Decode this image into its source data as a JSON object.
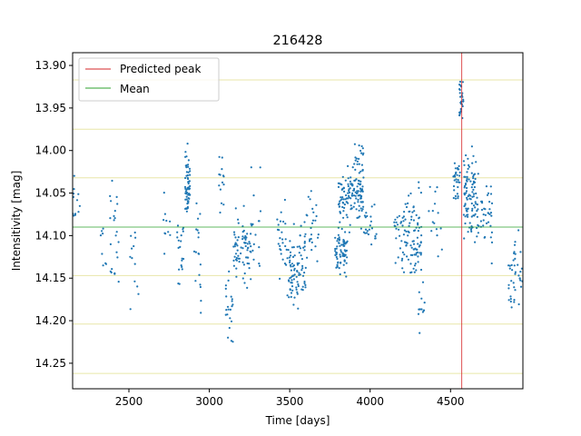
{
  "chart_data": {
    "type": "scatter",
    "title": "216428",
    "xlabel": "Time [days]",
    "ylabel": "Intensitivity [mag]",
    "xlim": [
      2150,
      4950
    ],
    "ylim": [
      14.28,
      13.885
    ],
    "y_inverted": true,
    "x_ticks": [
      2500,
      3000,
      3500,
      4000,
      4500
    ],
    "y_ticks": [
      13.9,
      13.95,
      14.0,
      14.05,
      14.1,
      14.15,
      14.2,
      14.25
    ],
    "x_tick_labels": [
      "2500",
      "3000",
      "3500",
      "4000",
      "4500"
    ],
    "y_tick_labels": [
      "13.90",
      "13.95",
      "14.00",
      "14.05",
      "14.10",
      "14.15",
      "14.20",
      "14.25"
    ],
    "grid": false,
    "legend": {
      "placement": "top-left",
      "entries": [
        {
          "label": "Predicted peak",
          "color": "#d62728"
        },
        {
          "label": "Mean",
          "color": "#2ca02c"
        }
      ]
    },
    "predicted_peak_x": 4570,
    "mean_y": 14.09,
    "sigma_lines_y": [
      13.917,
      13.975,
      14.032,
      14.147,
      14.204,
      14.262
    ],
    "colors": {
      "points": "#1f77b4",
      "predicted_peak": "#d62728",
      "mean": "#2ca02c",
      "sigma": "#e8e6a8"
    },
    "clusters": [
      {
        "x": [
          2150,
          2200
        ],
        "y": [
          14.02,
          14.11
        ],
        "n": 12
      },
      {
        "x": [
          2320,
          2360
        ],
        "y": [
          14.04,
          14.17
        ],
        "n": 8
      },
      {
        "x": [
          2380,
          2440
        ],
        "y": [
          14.02,
          14.2
        ],
        "n": 22
      },
      {
        "x": [
          2500,
          2560
        ],
        "y": [
          14.06,
          14.2
        ],
        "n": 12
      },
      {
        "x": [
          2700,
          2760
        ],
        "y": [
          14.02,
          14.15
        ],
        "n": 10
      },
      {
        "x": [
          2800,
          2840
        ],
        "y": [
          14.05,
          14.21
        ],
        "n": 20
      },
      {
        "x": [
          2850,
          2880
        ],
        "y": [
          13.98,
          14.1
        ],
        "n": 60
      },
      {
        "x": [
          2900,
          2950
        ],
        "y": [
          14.04,
          14.2
        ],
        "n": 18
      },
      {
        "x": [
          3060,
          3090
        ],
        "y": [
          13.99,
          14.09
        ],
        "n": 14
      },
      {
        "x": [
          3100,
          3150
        ],
        "y": [
          14.12,
          14.245
        ],
        "n": 22
      },
      {
        "x": [
          3150,
          3260
        ],
        "y": [
          14.05,
          14.18
        ],
        "n": 70
      },
      {
        "x": [
          3260,
          3320
        ],
        "y": [
          13.97,
          14.19
        ],
        "n": 16
      },
      {
        "x": [
          3420,
          3480
        ],
        "y": [
          14.04,
          14.16
        ],
        "n": 24
      },
      {
        "x": [
          3480,
          3600
        ],
        "y": [
          14.08,
          14.2
        ],
        "n": 80
      },
      {
        "x": [
          3560,
          3680
        ],
        "y": [
          14.02,
          14.15
        ],
        "n": 35
      },
      {
        "x": [
          3780,
          3860
        ],
        "y": [
          14.08,
          14.16
        ],
        "n": 70
      },
      {
        "x": [
          3800,
          3860
        ],
        "y": [
          14.02,
          14.1
        ],
        "n": 40
      },
      {
        "x": [
          3860,
          3960
        ],
        "y": [
          14.0,
          14.11
        ],
        "n": 90
      },
      {
        "x": [
          3900,
          3960
        ],
        "y": [
          13.97,
          14.05
        ],
        "n": 22
      },
      {
        "x": [
          3960,
          4040
        ],
        "y": [
          14.03,
          14.15
        ],
        "n": 22
      },
      {
        "x": [
          4150,
          4230
        ],
        "y": [
          14.04,
          14.16
        ],
        "n": 40
      },
      {
        "x": [
          4230,
          4320
        ],
        "y": [
          14.02,
          14.18
        ],
        "n": 70
      },
      {
        "x": [
          4300,
          4340
        ],
        "y": [
          14.15,
          14.22
        ],
        "n": 12
      },
      {
        "x": [
          4360,
          4450
        ],
        "y": [
          14.02,
          14.16
        ],
        "n": 15
      },
      {
        "x": [
          4510,
          4560
        ],
        "y": [
          14.0,
          14.08
        ],
        "n": 30
      },
      {
        "x": [
          4555,
          4580
        ],
        "y": [
          13.905,
          13.99
        ],
        "n": 30
      },
      {
        "x": [
          4580,
          4660
        ],
        "y": [
          13.98,
          14.12
        ],
        "n": 90
      },
      {
        "x": [
          4660,
          4760
        ],
        "y": [
          14.0,
          14.15
        ],
        "n": 45
      },
      {
        "x": [
          4860,
          4950
        ],
        "y": [
          14.08,
          14.21
        ],
        "n": 40
      }
    ]
  }
}
